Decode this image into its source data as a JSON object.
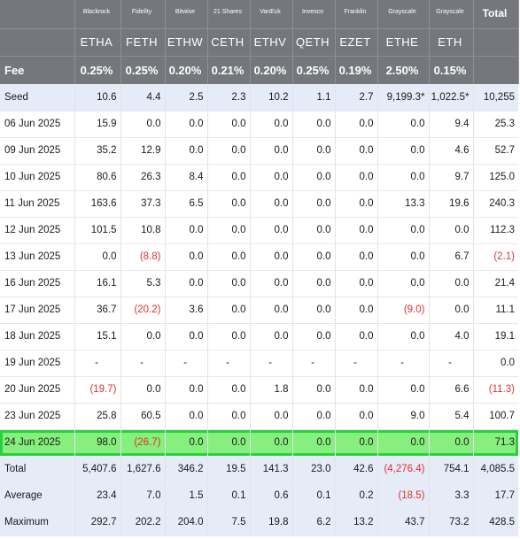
{
  "header": {
    "issuers": [
      "Blackrock",
      "Fidelity",
      "Bitwise",
      "21 Shares",
      "VanEck",
      "Invesco",
      "Franklin",
      "Grayscale",
      "Grayscale"
    ],
    "total_label": "Total",
    "tickers": [
      "ETHA",
      "FETH",
      "ETHW",
      "CETH",
      "ETHV",
      "QETH",
      "EZET",
      "ETHE",
      "ETH"
    ],
    "fee_label": "Fee",
    "fees": [
      "0.25%",
      "0.25%",
      "0.20%",
      "0.21%",
      "0.20%",
      "0.25%",
      "0.19%",
      "2.50%",
      "0.15%"
    ]
  },
  "rows": [
    {
      "label": "Seed",
      "kind": "seed",
      "values": [
        "10.6",
        "4.4",
        "2.5",
        "2.3",
        "10.2",
        "1.1",
        "2.7",
        "9,199.3*",
        "1,022.5*",
        "10,255"
      ]
    },
    {
      "label": "06 Jun 2025",
      "kind": "day",
      "values": [
        "15.9",
        "0.0",
        "0.0",
        "0.0",
        "0.0",
        "0.0",
        "0.0",
        "0.0",
        "9.4",
        "25.3"
      ]
    },
    {
      "label": "09 Jun 2025",
      "kind": "day",
      "values": [
        "35.2",
        "12.9",
        "0.0",
        "0.0",
        "0.0",
        "0.0",
        "0.0",
        "0.0",
        "4.6",
        "52.7"
      ]
    },
    {
      "label": "10 Jun 2025",
      "kind": "day",
      "values": [
        "80.6",
        "26.3",
        "8.4",
        "0.0",
        "0.0",
        "0.0",
        "0.0",
        "0.0",
        "9.7",
        "125.0"
      ]
    },
    {
      "label": "11 Jun 2025",
      "kind": "day",
      "values": [
        "163.6",
        "37.3",
        "6.5",
        "0.0",
        "0.0",
        "0.0",
        "0.0",
        "13.3",
        "19.6",
        "240.3"
      ]
    },
    {
      "label": "12 Jun 2025",
      "kind": "day",
      "values": [
        "101.5",
        "10.8",
        "0.0",
        "0.0",
        "0.0",
        "0.0",
        "0.0",
        "0.0",
        "0.0",
        "112.3"
      ]
    },
    {
      "label": "13 Jun 2025",
      "kind": "day",
      "values": [
        "0.0",
        "(8.8)",
        "0.0",
        "0.0",
        "0.0",
        "0.0",
        "0.0",
        "0.0",
        "6.7",
        "(2.1)"
      ]
    },
    {
      "label": "16 Jun 2025",
      "kind": "day",
      "values": [
        "16.1",
        "5.3",
        "0.0",
        "0.0",
        "0.0",
        "0.0",
        "0.0",
        "0.0",
        "0.0",
        "21.4"
      ]
    },
    {
      "label": "17 Jun 2025",
      "kind": "day",
      "values": [
        "36.7",
        "(20.2)",
        "3.6",
        "0.0",
        "0.0",
        "0.0",
        "0.0",
        "(9.0)",
        "0.0",
        "11.1"
      ]
    },
    {
      "label": "18 Jun 2025",
      "kind": "day",
      "values": [
        "15.1",
        "0.0",
        "0.0",
        "0.0",
        "0.0",
        "0.0",
        "0.0",
        "0.0",
        "4.0",
        "19.1"
      ]
    },
    {
      "label": "19 Jun 2025",
      "kind": "day",
      "values": [
        "-",
        "-",
        "-",
        "-",
        "-",
        "-",
        "-",
        "-",
        "-",
        "0.0"
      ]
    },
    {
      "label": "20 Jun 2025",
      "kind": "day",
      "values": [
        "(19.7)",
        "0.0",
        "0.0",
        "0.0",
        "1.8",
        "0.0",
        "0.0",
        "0.0",
        "6.6",
        "(11.3)"
      ]
    },
    {
      "label": "23 Jun 2025",
      "kind": "day",
      "values": [
        "25.8",
        "60.5",
        "0.0",
        "0.0",
        "0.0",
        "0.0",
        "0.0",
        "9.0",
        "5.4",
        "100.7"
      ]
    },
    {
      "label": "24 Jun 2025",
      "kind": "highlight",
      "values": [
        "98.0",
        "(26.7)",
        "0.0",
        "0.0",
        "0.0",
        "0.0",
        "0.0",
        "0.0",
        "0.0",
        "71.3"
      ]
    },
    {
      "label": "Total",
      "kind": "summary",
      "values": [
        "5,407.6",
        "1,627.6",
        "346.2",
        "19.5",
        "141.3",
        "23.0",
        "42.6",
        "(4,276.4)",
        "754.1",
        "4,085.5"
      ]
    },
    {
      "label": "Average",
      "kind": "summary",
      "values": [
        "23.4",
        "7.0",
        "1.5",
        "0.1",
        "0.6",
        "0.1",
        "0.2",
        "(18.5)",
        "3.3",
        "17.7"
      ]
    },
    {
      "label": "Maximum",
      "kind": "summary",
      "values": [
        "292.7",
        "202.2",
        "204.0",
        "7.5",
        "19.8",
        "6.2",
        "13.2",
        "43.7",
        "73.2",
        "428.5"
      ]
    }
  ],
  "colors": {
    "header_bg": "#75777c",
    "summary_bg": "#e5ebf7",
    "highlight_bg": "#86ef7d",
    "highlight_border": "#27d13b",
    "negative": "#e0322f"
  }
}
